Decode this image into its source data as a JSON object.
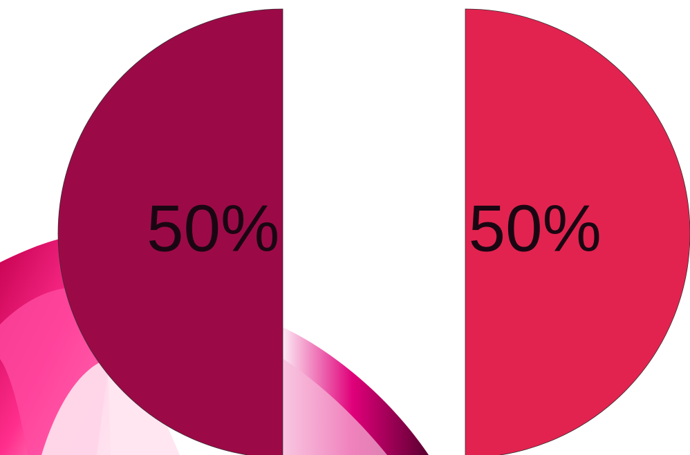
{
  "chart_data": {
    "type": "pie",
    "values": [
      50,
      50
    ],
    "value_labels": [
      "50%",
      "50%"
    ],
    "colors": [
      "#9b0a47",
      "#e2234f"
    ]
  }
}
